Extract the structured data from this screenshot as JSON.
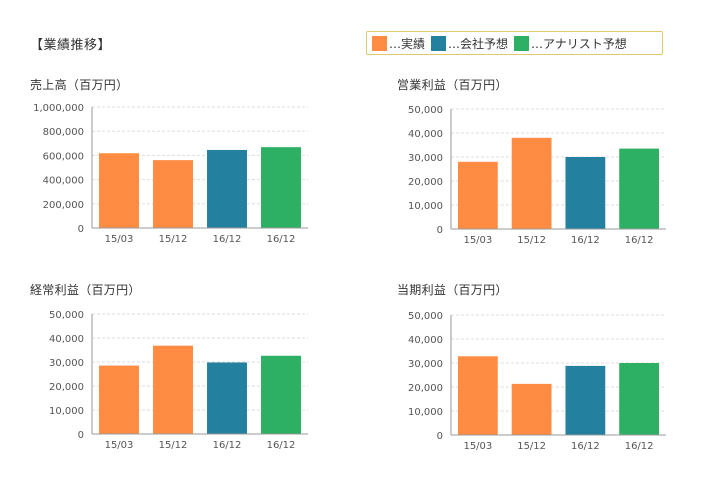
{
  "section_title": "【業績推移】",
  "legend": [
    {
      "label": "…実績",
      "color": "#ff8c42"
    },
    {
      "label": "…会社予想",
      "color": "#23809f"
    },
    {
      "label": "…アナリスト予想",
      "color": "#2db064"
    }
  ],
  "chart_data": [
    {
      "type": "bar",
      "title": "売上高（百万円）",
      "categories": [
        "15/03",
        "15/12",
        "16/12",
        "16/12"
      ],
      "values": [
        618000,
        561000,
        645000,
        668000
      ],
      "bar_colors": [
        "#ff8c42",
        "#ff8c42",
        "#23809f",
        "#2db064"
      ],
      "ylim": [
        0,
        1000000
      ],
      "yticks": [
        0,
        200000,
        400000,
        600000,
        800000,
        1000000
      ],
      "ytick_labels": [
        "0",
        "200,000",
        "400,000",
        "600,000",
        "800,000",
        "1,000,000"
      ],
      "grid": true
    },
    {
      "type": "bar",
      "title": "営業利益（百万円）",
      "categories": [
        "15/03",
        "15/12",
        "16/12",
        "16/12"
      ],
      "values": [
        28000,
        38000,
        30000,
        33500
      ],
      "bar_colors": [
        "#ff8c42",
        "#ff8c42",
        "#23809f",
        "#2db064"
      ],
      "ylim": [
        0,
        50000
      ],
      "yticks": [
        0,
        10000,
        20000,
        30000,
        40000,
        50000
      ],
      "ytick_labels": [
        "0",
        "10,000",
        "20,000",
        "30,000",
        "40,000",
        "50,000"
      ],
      "grid": true
    },
    {
      "type": "bar",
      "title": "経常利益（百万円）",
      "categories": [
        "15/03",
        "15/12",
        "16/12",
        "16/12"
      ],
      "values": [
        28500,
        36800,
        29800,
        32600
      ],
      "bar_colors": [
        "#ff8c42",
        "#ff8c42",
        "#23809f",
        "#2db064"
      ],
      "ylim": [
        0,
        50000
      ],
      "yticks": [
        0,
        10000,
        20000,
        30000,
        40000,
        50000
      ],
      "ytick_labels": [
        "0",
        "10,000",
        "20,000",
        "30,000",
        "40,000",
        "50,000"
      ],
      "grid": true
    },
    {
      "type": "bar",
      "title": "当期利益（百万円）",
      "categories": [
        "15/03",
        "15/12",
        "16/12",
        "16/12"
      ],
      "values": [
        32800,
        21300,
        28800,
        30000
      ],
      "bar_colors": [
        "#ff8c42",
        "#ff8c42",
        "#23809f",
        "#2db064"
      ],
      "ylim": [
        0,
        50000
      ],
      "yticks": [
        0,
        10000,
        20000,
        30000,
        40000,
        50000
      ],
      "ytick_labels": [
        "0",
        "10,000",
        "20,000",
        "30,000",
        "40,000",
        "50,000"
      ],
      "grid": true
    }
  ]
}
